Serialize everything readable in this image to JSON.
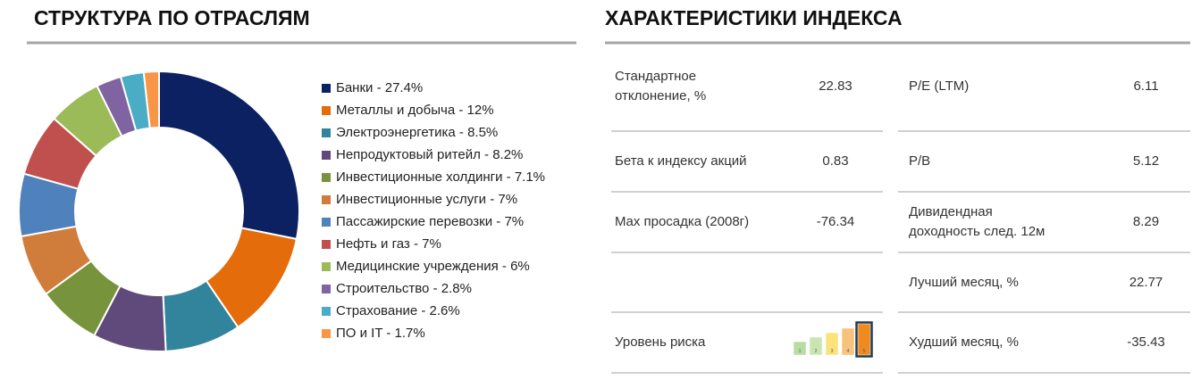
{
  "chart_data": {
    "type": "donut",
    "title": "СТРУКТУРА ПО ОТРАСЛЯМ",
    "categories": [
      "Банки - 27.4%",
      "Металлы и добыча - 12%",
      "Электроэнергетика - 8.5%",
      "Непродуктовый ритейл - 8.2%",
      "Инвестиционные холдинги - 7.1%",
      "Инвестиционные услуги - 7%",
      "Пассажирские перевозки - 7%",
      "Нефть и газ - 7%",
      "Медицинские учреждения - 6%",
      "Строительство - 2.8%",
      "Страхование - 2.6%",
      "ПО и IT - 1.7%"
    ],
    "values": [
      27.4,
      12,
      8.5,
      8.2,
      7.1,
      7,
      7,
      7,
      6,
      2.8,
      2.6,
      1.7
    ],
    "colors": [
      "#0b2161",
      "#e46c0a",
      "#31849b",
      "#604a7b",
      "#77933c",
      "#d07c3a",
      "#4f81bd",
      "#c0504d",
      "#9bbb59",
      "#8064a2",
      "#4bacc6",
      "#f79646"
    ]
  },
  "index": {
    "title": "ХАРАКТЕРИСТИКИ ИНДЕКСА",
    "rows": [
      [
        "Стандартное\nотклонение, %",
        "22.83",
        "P/E (LTM)",
        "6.11"
      ],
      [
        "Бета к индексу акций",
        "0.83",
        "P/B",
        "5.12"
      ],
      [
        "Max просадка (2008г)",
        "-76.34",
        "Дивидендная\nдоходность след. 12м",
        "8.29"
      ],
      [
        null,
        null,
        "Лучший месяц, %",
        "22.77"
      ],
      [
        "Уровень риска",
        null,
        "Худший месяц, %",
        "-35.43"
      ]
    ],
    "risk": {
      "scale": [
        1,
        2,
        3,
        4,
        5
      ],
      "value": 5
    }
  }
}
